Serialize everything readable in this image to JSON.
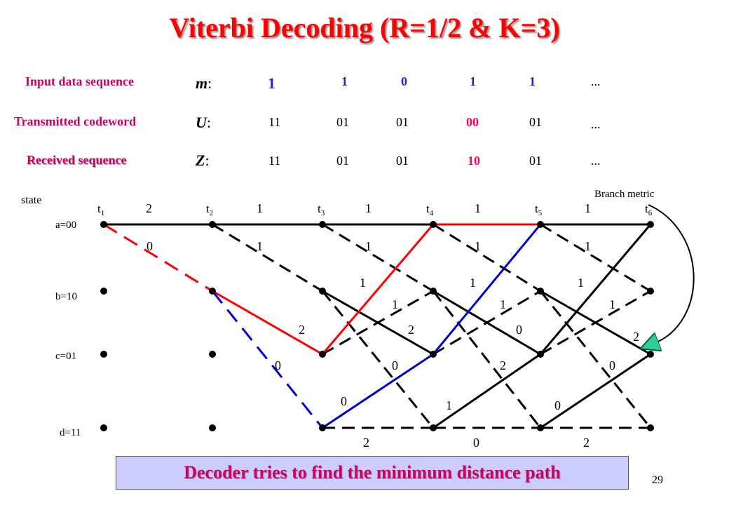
{
  "title": "Viterbi Decoding (R=1/2 & K=3)",
  "rows": {
    "input": {
      "label": "Input data sequence",
      "symbol": "m",
      "values": [
        "1",
        "1",
        "0",
        "1",
        "1"
      ],
      "ellipsis": "..."
    },
    "transmitted": {
      "label": "Transmitted codeword",
      "symbol": "U",
      "values": [
        "11",
        "01",
        "01",
        "00",
        "01"
      ],
      "ellipsis": "..."
    },
    "received": {
      "label": "Received sequence",
      "symbol": "Z",
      "values": [
        "11",
        "01",
        "01",
        "10",
        "01"
      ],
      "ellipsis": "..."
    }
  },
  "colon": ":",
  "trellis": {
    "state_header": "state",
    "states": [
      "a=00",
      "b=10",
      "c=01",
      "d=11"
    ],
    "times": [
      "1",
      "2",
      "3",
      "4",
      "5",
      "6"
    ],
    "time_prefix": "t",
    "branch_metric_label": "Branch metric",
    "top_metrics": [
      "2",
      "1",
      "1",
      "1",
      "1"
    ],
    "diag_metrics": [
      "0",
      "1",
      "1",
      "1",
      "1"
    ],
    "b_row_metrics_upper": [
      "1",
      "1",
      "1"
    ],
    "b_row_metrics_lower": [
      "1",
      "1",
      "1"
    ],
    "mid_metrics": [
      "2",
      "2",
      "0",
      "2"
    ],
    "c_row_metrics": [
      "0",
      "0",
      "2",
      "0"
    ],
    "lower_metrics": [
      "0",
      "1",
      "0"
    ],
    "bottom_metrics": [
      "2",
      "0",
      "2"
    ]
  },
  "colors": {
    "title": "#ff0000",
    "label": "#cc0066",
    "blue_bits": "#1f1fd6",
    "error_bits": "#ff0066",
    "path_red": "#ff0000",
    "path_blue": "#0000cc",
    "banner_bg": "#ccccff",
    "arrow": "#33cc99"
  },
  "banner": "Decoder tries to find the minimum distance path",
  "page_number": "29"
}
